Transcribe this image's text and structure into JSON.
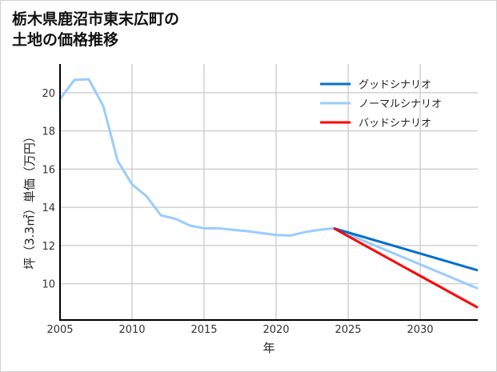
{
  "chart_data": {
    "type": "line",
    "title": "栃木県鹿沼市東末広町の\n土地の価格推移",
    "xlabel": "年",
    "ylabel": "坪（3.3㎡）単価（万円）",
    "xlim": [
      2005,
      2034
    ],
    "ylim": [
      8.1,
      21.5
    ],
    "xticks": [
      2005,
      2010,
      2015,
      2020,
      2025,
      2030
    ],
    "yticks": [
      10,
      12,
      14,
      16,
      18,
      20
    ],
    "grid": true,
    "legend_position": "top-right",
    "series": [
      {
        "name": "グッドシナリオ",
        "color": "#0070cc",
        "x": [
          2024,
          2034
        ],
        "y": [
          12.9,
          10.7
        ]
      },
      {
        "name": "ノーマルシナリオ",
        "color": "#99ccff",
        "x": [
          2005,
          2006,
          2007,
          2008,
          2009,
          2010,
          2011,
          2012,
          2013,
          2014,
          2015,
          2016,
          2017,
          2018,
          2019,
          2020,
          2021,
          2022,
          2023,
          2024,
          2034
        ],
        "y": [
          19.67,
          20.67,
          20.7,
          19.3,
          16.43,
          15.2,
          14.58,
          13.58,
          13.4,
          13.05,
          12.9,
          12.9,
          12.82,
          12.75,
          12.65,
          12.55,
          12.52,
          12.7,
          12.82,
          12.9,
          9.75
        ]
      },
      {
        "name": "バッドシナリオ",
        "color": "#ff0000",
        "x": [
          2024,
          2034
        ],
        "y": [
          12.9,
          8.75
        ]
      }
    ]
  }
}
